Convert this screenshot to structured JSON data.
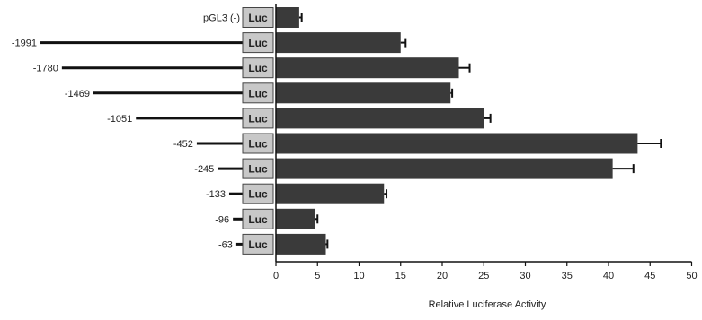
{
  "chart_data": {
    "type": "bar",
    "orientation": "horizontal",
    "categories": [
      "pGL3 (-)",
      "-1991",
      "-1780",
      "-1469",
      "-1051",
      "-452",
      "-245",
      "-133",
      "-96",
      "-63"
    ],
    "construct_label": "Luc",
    "values": [
      2.8,
      15.0,
      22.0,
      21.0,
      25.0,
      43.5,
      40.5,
      13.0,
      4.7,
      6.0
    ],
    "errors": [
      0.3,
      0.6,
      1.3,
      0.2,
      0.8,
      2.8,
      2.5,
      0.3,
      0.3,
      0.2
    ],
    "promoter_length_bp": [
      0,
      1991,
      1780,
      1469,
      1051,
      452,
      245,
      133,
      96,
      63
    ],
    "xlabel": "Relative Luciferase Activity",
    "xlim": [
      0,
      50
    ],
    "xticks": [
      "0",
      "5",
      "10",
      "15",
      "20",
      "25",
      "30",
      "35",
      "40",
      "45",
      "50"
    ],
    "bar_color": "#3a3a3a",
    "luc_box_color": "#c8c8c8",
    "grid": false
  }
}
